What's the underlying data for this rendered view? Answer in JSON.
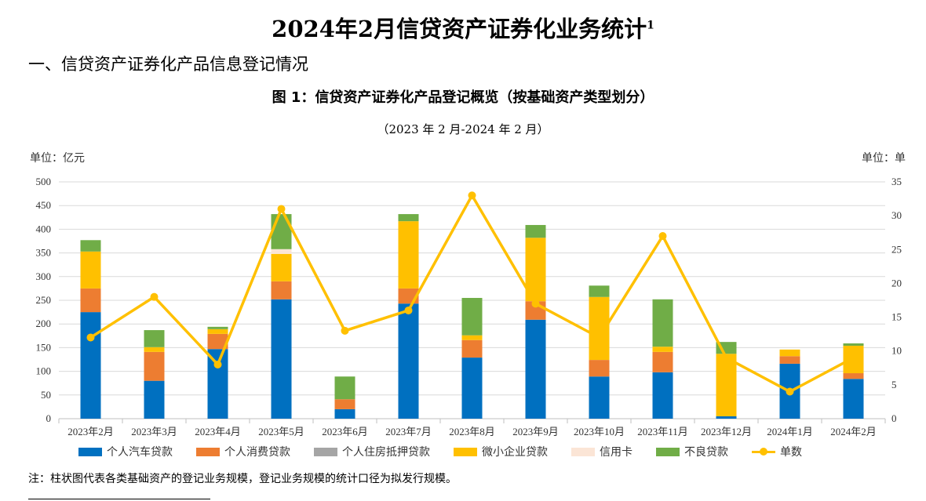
{
  "title": "2024年2月信贷资产证券化业务统计",
  "title_sup": "1",
  "section": "一、信贷资产证券化产品信息登记情况",
  "chart_data": {
    "type": "bar",
    "title": "图 1：信贷资产证券化产品登记概览（按基础资产类型划分）",
    "subtitle": "（2023 年 2 月-2024 年 2 月）",
    "ylabel": "单位：亿元",
    "y2label": "单位：单",
    "ylim": [
      0,
      500
    ],
    "y2lim": [
      0,
      35
    ],
    "yticks": [
      0,
      50,
      100,
      150,
      200,
      250,
      300,
      350,
      400,
      450,
      500
    ],
    "y2ticks": [
      0,
      5,
      10,
      15,
      20,
      25,
      30,
      35
    ],
    "categories": [
      "2023年2月",
      "2023年3月",
      "2023年4月",
      "2023年5月",
      "2023年6月",
      "2023年7月",
      "2023年8月",
      "2023年9月",
      "2023年10月",
      "2023年11月",
      "2023年12月",
      "2024年1月",
      "2024年2月"
    ],
    "series": [
      {
        "name": "个人汽车贷款",
        "color": "#0070C0",
        "values": [
          225,
          80,
          147,
          252,
          20,
          243,
          129,
          209,
          89,
          98,
          5,
          116,
          84
        ]
      },
      {
        "name": "个人消费贷款",
        "color": "#ED7D31",
        "values": [
          50,
          61,
          32,
          38,
          21,
          32,
          37,
          39,
          35,
          43,
          0,
          16,
          12
        ]
      },
      {
        "name": "个人住房抵押贷款",
        "color": "#A5A5A5",
        "values": [
          0,
          0,
          0,
          0,
          0,
          0,
          0,
          0,
          0,
          0,
          0,
          0,
          0
        ]
      },
      {
        "name": "微小企业贷款",
        "color": "#FFC000",
        "values": [
          78,
          10,
          10,
          58,
          0,
          142,
          10,
          134,
          133,
          11,
          132,
          14,
          58
        ]
      },
      {
        "name": "信用卡",
        "color": "#FBE5D6",
        "values": [
          0,
          0,
          0,
          10,
          0,
          0,
          0,
          0,
          0,
          0,
          0,
          0,
          0
        ]
      },
      {
        "name": "不良贷款",
        "color": "#70AD47",
        "values": [
          24,
          36,
          5,
          74,
          48,
          15,
          79,
          27,
          24,
          100,
          25,
          0,
          5
        ]
      }
    ],
    "line": {
      "name": "单数",
      "color": "#FFC000",
      "axis": "right",
      "values": [
        12,
        18,
        8,
        31,
        13,
        16,
        33,
        17,
        12,
        27,
        9,
        4,
        9
      ]
    },
    "legend": "bottom",
    "grid": true
  },
  "note": "注：柱状图代表各类基础资产的登记业务规模，登记业务规模的统计口径为拟发行规模。"
}
